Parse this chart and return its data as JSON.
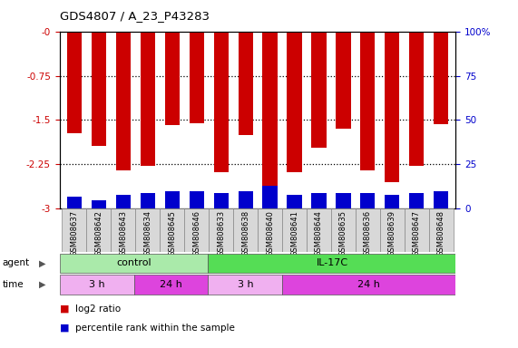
{
  "title": "GDS4807 / A_23_P43283",
  "samples": [
    "GSM808637",
    "GSM808642",
    "GSM808643",
    "GSM808634",
    "GSM808645",
    "GSM808646",
    "GSM808633",
    "GSM808638",
    "GSM808640",
    "GSM808641",
    "GSM808644",
    "GSM808635",
    "GSM808636",
    "GSM808639",
    "GSM808647",
    "GSM808648"
  ],
  "log2_ratio": [
    -1.72,
    -1.93,
    -2.35,
    -2.28,
    -1.58,
    -1.55,
    -2.38,
    -1.75,
    -2.95,
    -2.38,
    -1.97,
    -1.65,
    -2.35,
    -2.55,
    -2.28,
    -1.57
  ],
  "percentile": [
    7,
    5,
    8,
    9,
    10,
    10,
    9,
    10,
    13,
    8,
    9,
    9,
    9,
    8,
    9,
    10
  ],
  "ylim_left": [
    -3,
    0
  ],
  "ylim_right": [
    0,
    100
  ],
  "yticks_left": [
    -3,
    -2.25,
    -1.5,
    -0.75,
    0
  ],
  "yticks_right": [
    0,
    25,
    50,
    75,
    100
  ],
  "dotted_lines": [
    -0.75,
    -1.5,
    -2.25
  ],
  "bar_color_red": "#cc0000",
  "bar_color_blue": "#0000cc",
  "groups": [
    {
      "label": "control",
      "start": 0,
      "end": 6,
      "color": "#aaeaaa"
    },
    {
      "label": "IL-17C",
      "start": 6,
      "end": 16,
      "color": "#55dd55"
    }
  ],
  "time_groups": [
    {
      "label": "3 h",
      "start": 0,
      "end": 3,
      "color": "#f0b0f0"
    },
    {
      "label": "24 h",
      "start": 3,
      "end": 6,
      "color": "#dd44dd"
    },
    {
      "label": "3 h",
      "start": 6,
      "end": 9,
      "color": "#f0b0f0"
    },
    {
      "label": "24 h",
      "start": 9,
      "end": 16,
      "color": "#dd44dd"
    }
  ],
  "legend_red_label": "log2 ratio",
  "legend_blue_label": "percentile rank within the sample",
  "bg_color": "#ffffff",
  "tick_color_left": "#cc0000",
  "tick_color_right": "#0000cc",
  "label_cell_bg": "#d8d8d8"
}
